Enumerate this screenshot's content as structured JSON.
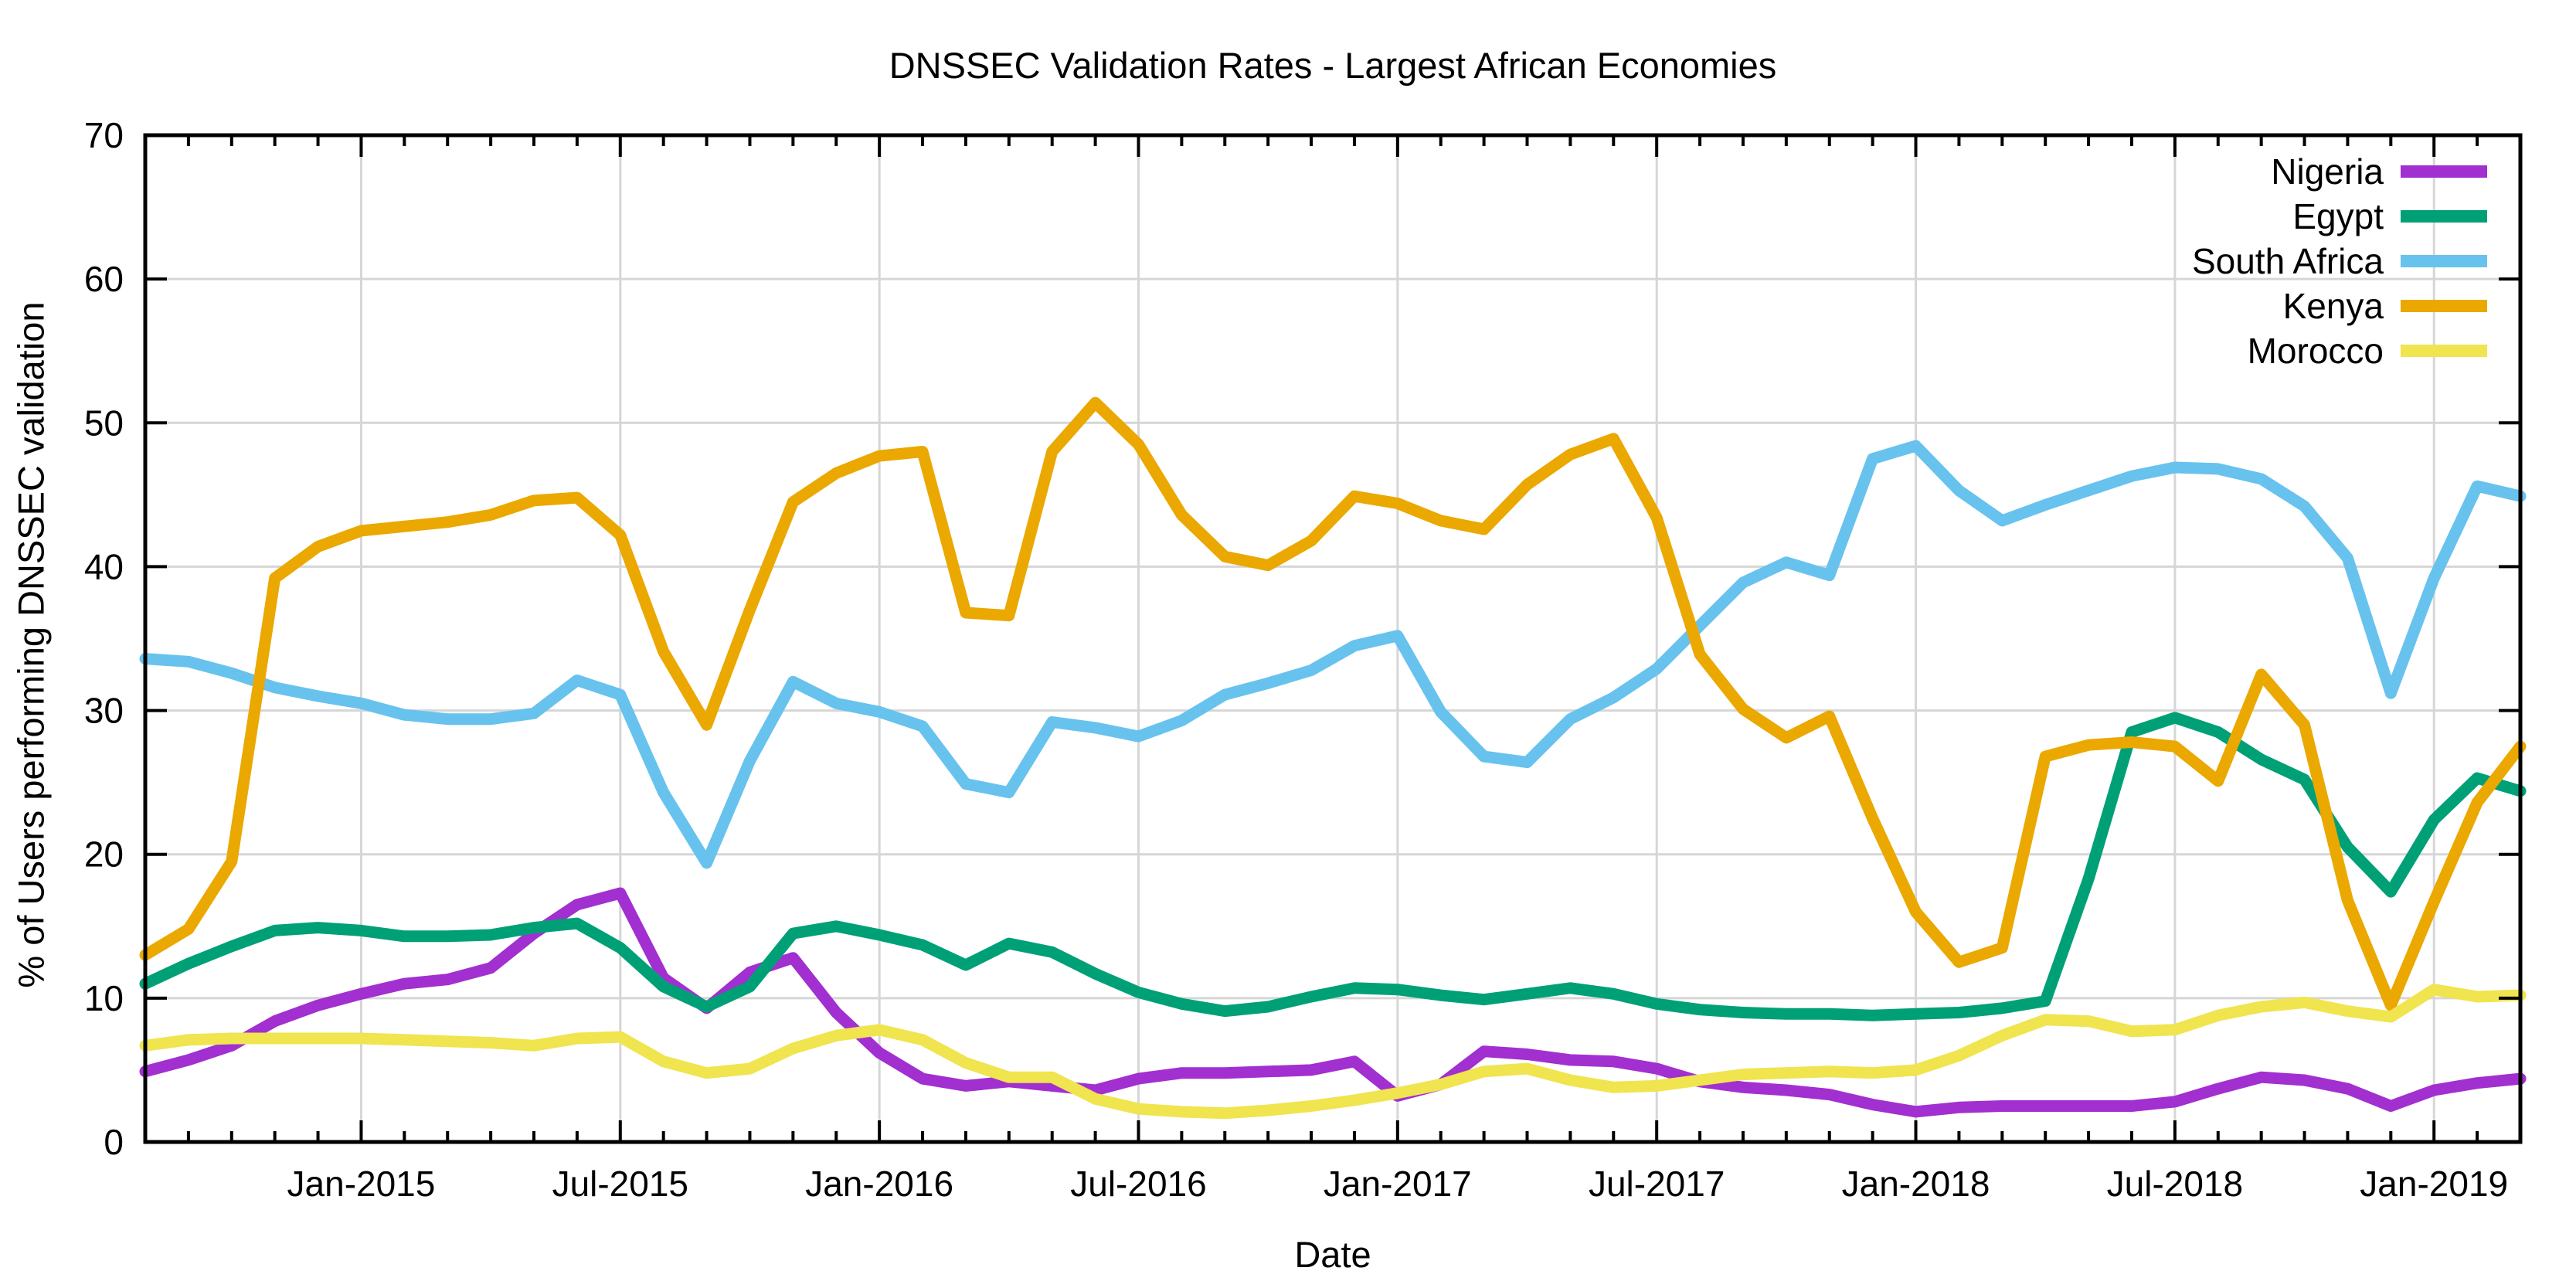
{
  "chart_data": {
    "type": "line",
    "title": "DNSSEC Validation Rates - Largest African Economies",
    "xlabel": "Date",
    "ylabel": "% of Users performing DNSSEC validation",
    "ylim": [
      0,
      70
    ],
    "yticks": [
      0,
      10,
      20,
      30,
      40,
      50,
      60,
      70
    ],
    "grid": true,
    "legend_position": "top-right-inside",
    "x": [
      "2014-08",
      "2014-09",
      "2014-10",
      "2014-11",
      "2014-12",
      "2015-01",
      "2015-02",
      "2015-03",
      "2015-04",
      "2015-05",
      "2015-06",
      "2015-07",
      "2015-08",
      "2015-09",
      "2015-10",
      "2015-11",
      "2015-12",
      "2016-01",
      "2016-02",
      "2016-03",
      "2016-04",
      "2016-05",
      "2016-06",
      "2016-07",
      "2016-08",
      "2016-09",
      "2016-10",
      "2016-11",
      "2016-12",
      "2017-01",
      "2017-02",
      "2017-03",
      "2017-04",
      "2017-05",
      "2017-06",
      "2017-07",
      "2017-08",
      "2017-09",
      "2017-10",
      "2017-11",
      "2017-12",
      "2018-01",
      "2018-02",
      "2018-03",
      "2018-04",
      "2018-05",
      "2018-06",
      "2018-07",
      "2018-08",
      "2018-09",
      "2018-10",
      "2018-11",
      "2018-12",
      "2019-01",
      "2019-02",
      "2019-03"
    ],
    "xticks": [
      {
        "month": "2015-01",
        "label": "Jan-2015"
      },
      {
        "month": "2015-07",
        "label": "Jul-2015"
      },
      {
        "month": "2016-01",
        "label": "Jan-2016"
      },
      {
        "month": "2016-07",
        "label": "Jul-2016"
      },
      {
        "month": "2017-01",
        "label": "Jan-2017"
      },
      {
        "month": "2017-07",
        "label": "Jul-2017"
      },
      {
        "month": "2018-01",
        "label": "Jan-2018"
      },
      {
        "month": "2018-07",
        "label": "Jul-2018"
      },
      {
        "month": "2019-01",
        "label": "Jan-2019"
      }
    ],
    "series": [
      {
        "name": "Nigeria",
        "color": "#A22FD0",
        "values": [
          4.9,
          5.7,
          6.7,
          8.4,
          9.5,
          10.3,
          11.0,
          11.3,
          12.1,
          14.5,
          16.5,
          17.3,
          11.4,
          9.3,
          11.8,
          12.8,
          9.0,
          6.2,
          4.4,
          3.9,
          4.2,
          3.9,
          3.6,
          4.4,
          4.8,
          4.8,
          4.9,
          5.0,
          5.6,
          3.2,
          4.0,
          6.3,
          6.1,
          5.7,
          5.6,
          5.1,
          4.2,
          3.8,
          3.6,
          3.3,
          2.6,
          2.1,
          2.4,
          2.5,
          2.5,
          2.5,
          2.5,
          2.8,
          3.7,
          4.5,
          4.3,
          3.7,
          2.5,
          3.6,
          4.1,
          4.4
        ]
      },
      {
        "name": "Egypt",
        "color": "#00A077",
        "values": [
          11.0,
          12.4,
          13.6,
          14.7,
          14.9,
          14.7,
          14.3,
          14.3,
          14.4,
          14.9,
          15.2,
          13.5,
          10.8,
          9.4,
          10.8,
          14.5,
          15.0,
          14.4,
          13.7,
          12.3,
          13.8,
          13.2,
          11.7,
          10.4,
          9.6,
          9.1,
          9.4,
          10.1,
          10.7,
          10.6,
          10.2,
          9.9,
          10.3,
          10.7,
          10.3,
          9.6,
          9.2,
          9.0,
          8.9,
          8.9,
          8.8,
          8.9,
          9.0,
          9.3,
          9.8,
          18.3,
          28.5,
          29.5,
          28.5,
          26.6,
          25.2,
          20.5,
          17.4,
          22.4,
          25.3,
          24.4
        ]
      },
      {
        "name": "South Africa",
        "color": "#68C2EE",
        "values": [
          33.6,
          33.4,
          32.6,
          31.6,
          31.0,
          30.5,
          29.7,
          29.4,
          29.4,
          29.8,
          32.1,
          31.1,
          24.3,
          19.4,
          26.5,
          32.0,
          30.5,
          29.9,
          28.9,
          24.9,
          24.3,
          29.2,
          28.8,
          28.2,
          29.3,
          31.1,
          31.9,
          32.8,
          34.5,
          35.2,
          29.9,
          26.8,
          26.4,
          29.4,
          30.9,
          32.9,
          35.9,
          38.9,
          40.3,
          39.4,
          47.5,
          48.4,
          45.3,
          43.2,
          44.3,
          45.3,
          46.3,
          46.9,
          46.8,
          46.1,
          44.2,
          40.6,
          31.2,
          39.2,
          45.6,
          44.9
        ]
      },
      {
        "name": "Kenya",
        "color": "#EAA800",
        "values": [
          13.0,
          14.8,
          19.5,
          39.2,
          41.4,
          42.5,
          42.8,
          43.1,
          43.6,
          44.6,
          44.8,
          42.2,
          34.1,
          29.0,
          37.0,
          44.5,
          46.5,
          47.7,
          48.0,
          36.8,
          36.6,
          48.0,
          51.4,
          48.5,
          43.6,
          40.7,
          40.1,
          41.8,
          44.9,
          44.4,
          43.2,
          42.6,
          45.7,
          47.8,
          48.9,
          43.4,
          33.9,
          30.1,
          28.1,
          29.6,
          22.5,
          16.0,
          12.5,
          13.5,
          26.8,
          27.6,
          27.8,
          27.5,
          25.1,
          32.5,
          29.0,
          16.8,
          9.5,
          16.7,
          23.6,
          27.5
        ]
      },
      {
        "name": "Morocco",
        "color": "#F0E44F",
        "values": [
          6.7,
          7.1,
          7.2,
          7.2,
          7.2,
          7.2,
          7.1,
          7.0,
          6.9,
          6.7,
          7.2,
          7.3,
          5.6,
          4.8,
          5.1,
          6.5,
          7.4,
          7.8,
          7.1,
          5.5,
          4.5,
          4.5,
          3.0,
          2.3,
          2.1,
          2.0,
          2.2,
          2.5,
          2.9,
          3.4,
          4.0,
          4.9,
          5.1,
          4.3,
          3.8,
          3.9,
          4.3,
          4.7,
          4.8,
          4.9,
          4.8,
          5.0,
          6.0,
          7.4,
          8.5,
          8.4,
          7.7,
          7.8,
          8.8,
          9.4,
          9.7,
          9.1,
          8.7,
          10.6,
          10.1,
          10.2
        ]
      }
    ]
  },
  "colors": {
    "background": "#FFFFFF",
    "grid": "#D6D6D6",
    "frame": "#000000",
    "text": "#000000"
  }
}
